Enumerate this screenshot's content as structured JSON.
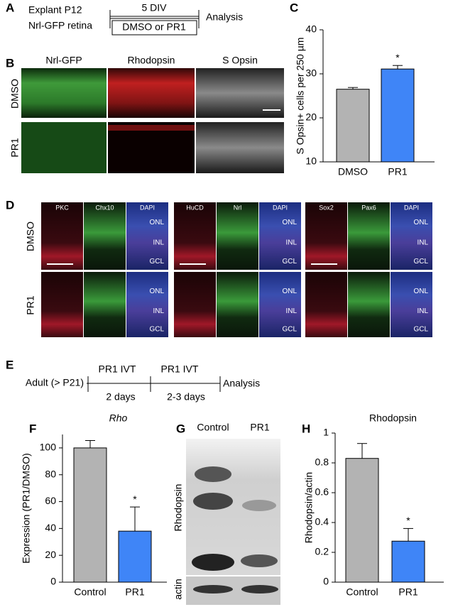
{
  "panel_a": {
    "label": "A",
    "line1": "Explant P12",
    "line2": "Nrl-GFP retina",
    "duration": "5 DIV",
    "treatment": "DMSO or PR1",
    "end": "Analysis"
  },
  "panel_b": {
    "label": "B",
    "columns": [
      "Nrl-GFP",
      "Rhodopsin",
      "S Opsin"
    ],
    "rows": [
      "DMSO",
      "PR1"
    ]
  },
  "panel_d": {
    "label": "D",
    "groups": [
      [
        "PKC",
        "Chx10",
        "DAPI"
      ],
      [
        "HuCD",
        "Nrl",
        "DAPI"
      ],
      [
        "Sox2",
        "Pax6",
        "DAPI"
      ]
    ],
    "rows": [
      "DMSO",
      "PR1"
    ],
    "layers": [
      "ONL",
      "INL",
      "GCL"
    ]
  },
  "panel_e": {
    "label": "E",
    "start": "Adult (> P21)",
    "injections": [
      "PR1 IVT",
      "PR1 IVT"
    ],
    "intervals": [
      "2 days",
      "2-3 days"
    ],
    "end": "Analysis"
  },
  "panel_g": {
    "label": "G",
    "lanes": [
      "Control",
      "PR1"
    ],
    "bands": [
      "Rhodopsin",
      "actin"
    ]
  },
  "chart_data": [
    {
      "type": "bar",
      "label": "C",
      "y_label": "S Opsin+ cells per 250 µm",
      "categories": [
        "DMSO",
        "PR1"
      ],
      "values": [
        26.5,
        31.1
      ],
      "errors": [
        0.4,
        0.8
      ],
      "colors": [
        "#b3b3b3",
        "#3f85f7"
      ],
      "ylim": [
        10,
        40
      ],
      "yticks": [
        10,
        20,
        30,
        40
      ],
      "significance": "*"
    },
    {
      "type": "bar",
      "label": "F",
      "title": "Rho",
      "y_label": "Expression (PR1/DMSO)",
      "categories": [
        "Control",
        "PR1"
      ],
      "values": [
        100,
        38
      ],
      "errors": [
        5.5,
        18
      ],
      "colors": [
        "#b3b3b3",
        "#3f85f7"
      ],
      "ylim": [
        0,
        110
      ],
      "yticks": [
        0,
        20,
        40,
        60,
        80,
        100
      ],
      "significance": "*"
    },
    {
      "type": "bar",
      "label": "H",
      "title": "Rhodopsin",
      "y_label": "Rhodopsin/actin",
      "categories": [
        "Control",
        "PR1"
      ],
      "values": [
        0.83,
        0.275
      ],
      "errors": [
        0.1,
        0.085
      ],
      "colors": [
        "#b3b3b3",
        "#3f85f7"
      ],
      "ylim": [
        0,
        1
      ],
      "yticks": [
        0,
        0.2,
        0.4,
        0.6,
        0.8,
        1
      ],
      "significance": "*"
    }
  ]
}
